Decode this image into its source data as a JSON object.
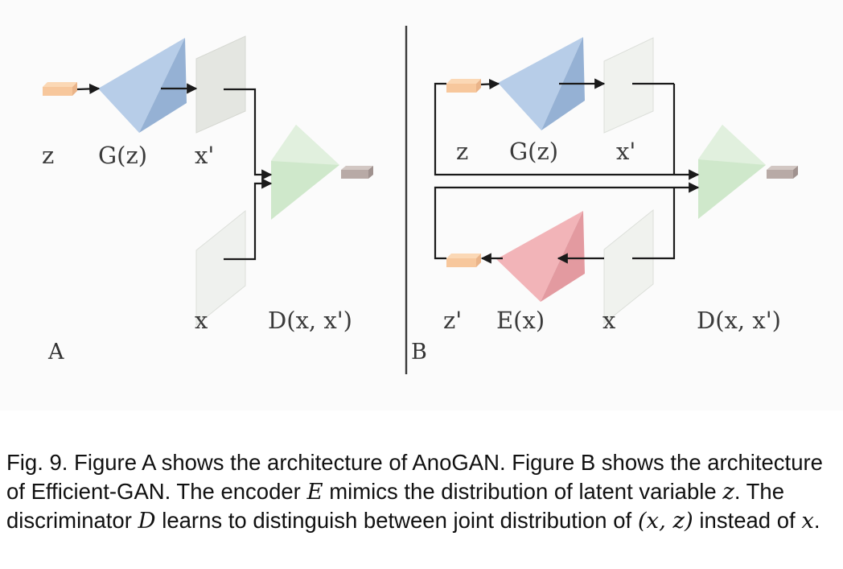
{
  "figure": {
    "panel_a": {
      "tag": "A",
      "labels": {
        "z": "z",
        "generator": "G(z)",
        "generated": "x'",
        "real": "x",
        "discriminator": "D(x, x')"
      }
    },
    "panel_b": {
      "tag": "B",
      "labels": {
        "z": "z",
        "generator": "G(z)",
        "generated": "x'",
        "latent_encoded": "z'",
        "encoder": "E(x)",
        "real": "x",
        "discriminator": "D(x, x')"
      }
    },
    "colors": {
      "latent": "#f7c79c",
      "generator": "#a9c3e2",
      "encoder": "#eea6ab",
      "discriminator": "#c8e5c4",
      "output": "#b8aaa6",
      "image_plane": "#eceeea"
    }
  },
  "caption": {
    "prefix": "Fig. 9. Figure A shows the architecture of AnoGAN. Figure B shows the architecture of Efficient-GAN. The encoder ",
    "var_e": "E",
    "mid1": " mimics the distribution of latent variable ",
    "var_z": "z",
    "mid2": ". The discriminator ",
    "var_d": "D",
    "mid3": " learns to distinguish between joint distribution of ",
    "pair": "(x, z)",
    "mid4": " instead of ",
    "var_x": "x",
    "suffix": "."
  }
}
